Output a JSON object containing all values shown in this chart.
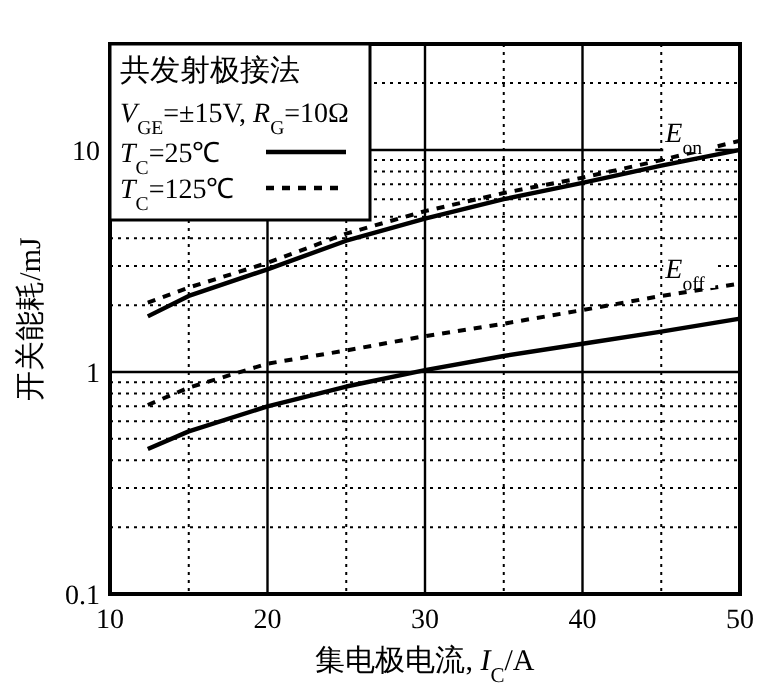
{
  "chart_data": {
    "type": "line",
    "xlabel": "集电极电流, *I*$_{C}$/A",
    "ylabel": "开关能耗/mJ",
    "legend_title": "共发射极接法",
    "log": "y",
    "grid": true,
    "legend": "top left",
    "xlim": [
      10,
      50
    ],
    "ylim": [
      0.1,
      30
    ],
    "xticks": [
      10,
      20,
      30,
      40,
      50
    ],
    "yticks": [
      0.1,
      1,
      10
    ],
    "series": [
      {
        "name": "*T*$_{C}$=25℃",
        "color": "#000000",
        "line_style": "solid",
        "x": [
          12.4,
          15,
          20,
          25,
          30,
          35,
          40,
          45,
          50
        ],
        "values": [
          1.78,
          2.2,
          2.9,
          3.9,
          4.9,
          6.0,
          7.1,
          8.5,
          10
        ]
      },
      {
        "name": "*T*$_{C}$=125℃",
        "color": "#000000",
        "line_style": "dashed",
        "x": [
          12.4,
          15,
          20,
          25,
          30,
          35,
          40,
          45,
          50
        ],
        "values": [
          2.05,
          2.4,
          3.1,
          4.2,
          5.3,
          6.4,
          7.5,
          9.0,
          11
        ]
      },
      {
        "color": "#000000",
        "line_style": "solid",
        "x": [
          12.4,
          15,
          20,
          25,
          30,
          35,
          40,
          45,
          50
        ],
        "values": [
          0.45,
          0.54,
          0.7,
          0.86,
          1.02,
          1.18,
          1.34,
          1.52,
          1.74
        ]
      },
      {
        "color": "#000000",
        "line_style": "dashed",
        "x": [
          12.4,
          15,
          20,
          25,
          30,
          35,
          40,
          45,
          50
        ],
        "values": [
          0.71,
          0.85,
          1.09,
          1.25,
          1.45,
          1.65,
          1.9,
          2.2,
          2.5
        ]
      }
    ],
    "annotations": [
      "*V*$_{GE}$=±15V, *R*$_{G}$=10Ω",
      "*E*$_{on}$",
      "*E*$_{off}$"
    ]
  }
}
